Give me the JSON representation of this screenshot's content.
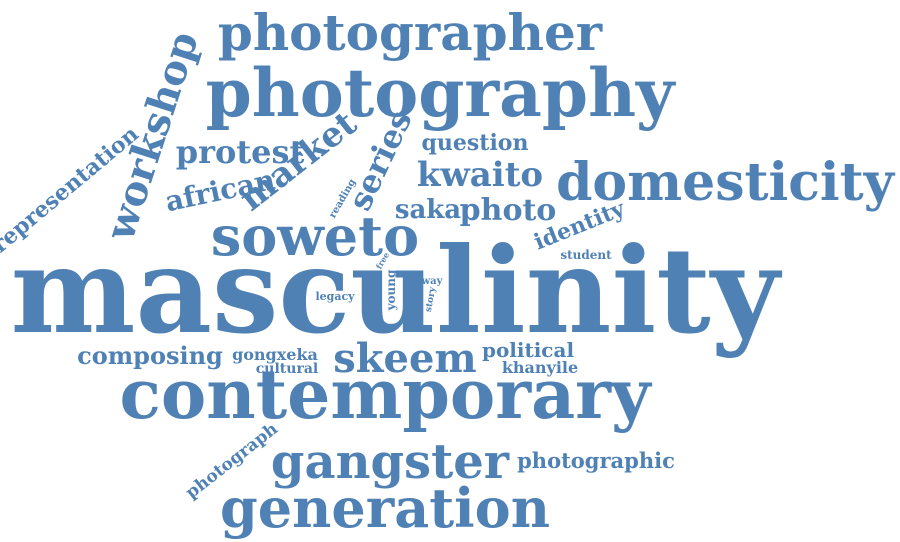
{
  "word_cloud": {
    "color": "#4f81b5",
    "words": [
      {
        "text": "masculinity",
        "rotation": 0
      },
      {
        "text": "contemporary",
        "rotation": 0
      },
      {
        "text": "photography",
        "rotation": 0
      },
      {
        "text": "photographer",
        "rotation": 0
      },
      {
        "text": "domesticity",
        "rotation": 0
      },
      {
        "text": "generation",
        "rotation": 0
      },
      {
        "text": "gangster",
        "rotation": 0
      },
      {
        "text": "soweto",
        "rotation": 0
      },
      {
        "text": "skeem",
        "rotation": 0
      },
      {
        "text": "workshop",
        "rotation": -72
      },
      {
        "text": "market",
        "rotation": -38
      },
      {
        "text": "series",
        "rotation": -65
      },
      {
        "text": "protest",
        "rotation": 0
      },
      {
        "text": "african",
        "rotation": -12
      },
      {
        "text": "kwaito",
        "rotation": 0
      },
      {
        "text": "photo",
        "rotation": 0
      },
      {
        "text": "saka",
        "rotation": 0
      },
      {
        "text": "identity",
        "rotation": -22
      },
      {
        "text": "question",
        "rotation": 0
      },
      {
        "text": "representation",
        "rotation": -40
      },
      {
        "text": "composing",
        "rotation": 0
      },
      {
        "text": "gongxeka",
        "rotation": 0
      },
      {
        "text": "political",
        "rotation": 0
      },
      {
        "text": "photographic",
        "rotation": 0
      },
      {
        "text": "photograph",
        "rotation": -38
      },
      {
        "text": "khanyile",
        "rotation": 0
      },
      {
        "text": "cultural",
        "rotation": 0
      },
      {
        "text": "student",
        "rotation": 0
      },
      {
        "text": "legacy",
        "rotation": 0
      },
      {
        "text": "young",
        "rotation": -90
      },
      {
        "text": "reading",
        "rotation": -60
      },
      {
        "text": "free",
        "rotation": -60
      },
      {
        "text": "way",
        "rotation": 0
      },
      {
        "text": "story",
        "rotation": -80
      }
    ]
  }
}
